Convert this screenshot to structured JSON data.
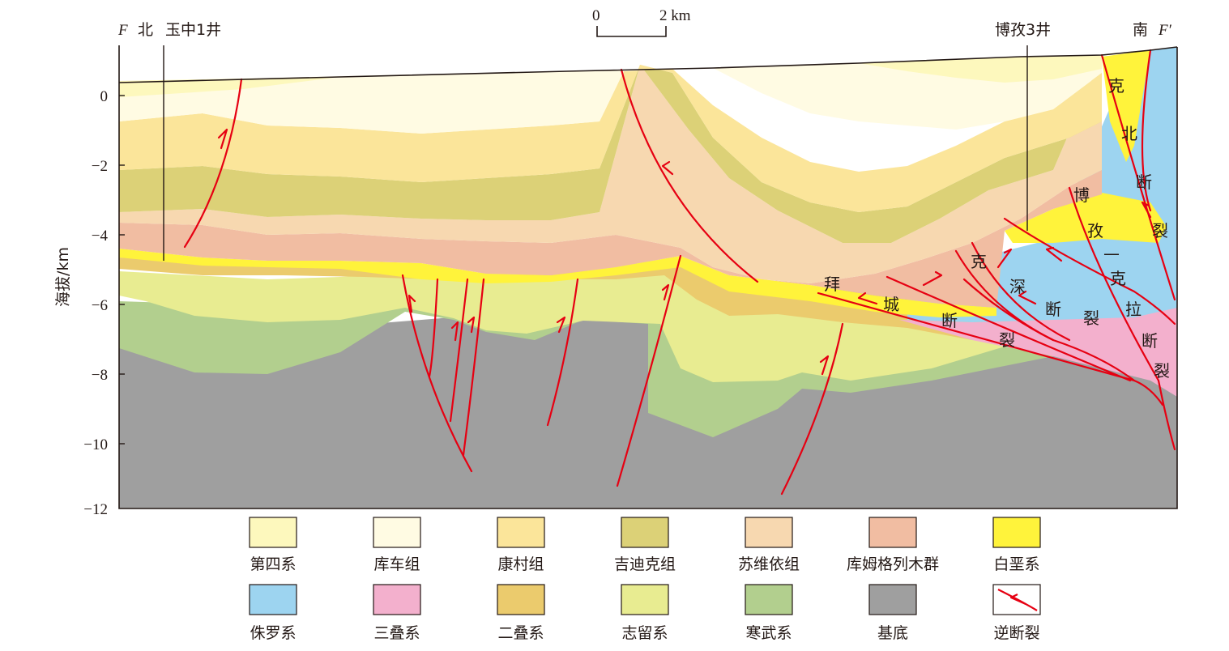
{
  "header": {
    "left_section_letter": "F",
    "left_direction": "北",
    "left_well": "玉中1井",
    "right_well": "博孜3井",
    "right_direction": "南",
    "right_section_letter": "F′"
  },
  "scale_bar": {
    "start": "0",
    "end": "2 km"
  },
  "y_axis": {
    "label": "海拔/km",
    "ticks": [
      "0",
      "−2",
      "−4",
      "−6",
      "−8",
      "−10",
      "−12"
    ]
  },
  "fault_labels": {
    "baicheng": [
      "拜",
      "城",
      "断",
      "裂"
    ],
    "keshen": [
      "克",
      "深",
      "断",
      "裂"
    ],
    "kebei": [
      "克",
      "北",
      "断",
      "裂"
    ],
    "bozi_kela": [
      "博",
      "孜",
      "—",
      "克",
      "拉",
      "断",
      "裂"
    ]
  },
  "legend": {
    "items": [
      {
        "label": "第四系",
        "color": "#fdf8bd"
      },
      {
        "label": "库车组",
        "color": "#fffbe3"
      },
      {
        "label": "康村组",
        "color": "#fbe59a"
      },
      {
        "label": "吉迪克组",
        "color": "#dcd177"
      },
      {
        "label": "苏维依组",
        "color": "#f7d8b0"
      },
      {
        "label": "库姆格列木群",
        "color": "#f1bda2"
      },
      {
        "label": "白垩系",
        "color": "#fff33b"
      },
      {
        "label": "侏罗系",
        "color": "#9dd4f0"
      },
      {
        "label": "三叠系",
        "color": "#f3b0cd"
      },
      {
        "label": "二叠系",
        "color": "#ebcb6d"
      },
      {
        "label": "志留系",
        "color": "#e8ec91"
      },
      {
        "label": "寒武系",
        "color": "#b2cf8e"
      },
      {
        "label": "基底",
        "color": "#9f9f9f"
      },
      {
        "label": "逆断裂",
        "color": "#e60012",
        "is_fault_symbol": true
      }
    ]
  }
}
